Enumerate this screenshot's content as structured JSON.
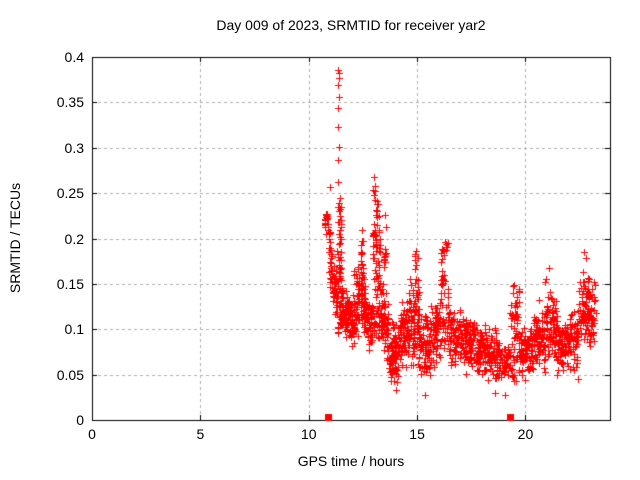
{
  "chart_data": {
    "type": "scatter",
    "title": "Day 009 of 2023, SRMTID for receiver yar2",
    "xlabel": "GPS time / hours",
    "ylabel": "SRMTID / TECUs",
    "xlim": [
      0,
      23.9
    ],
    "ylim": [
      0,
      0.4
    ],
    "xticks": [
      0,
      5,
      10,
      15,
      20
    ],
    "xtick_labels": [
      "0",
      "5",
      "10",
      "15",
      "20"
    ],
    "yticks": [
      0,
      0.05,
      0.1,
      0.15,
      0.2,
      0.25,
      0.3,
      0.35,
      0.4
    ],
    "ytick_labels": [
      "0",
      "0.05",
      "0.1",
      "0.15",
      "0.2",
      "0.25",
      "0.3",
      "0.35",
      "0.4"
    ],
    "grid": true,
    "legend": "none",
    "marker": "plus",
    "point_color": "#ff0000",
    "grid_color": "#b0b0b0",
    "axis_color": "#000000",
    "seed": 20230109,
    "notable_points": [
      [
        10.97,
        0.257
      ],
      [
        11.37,
        0.386
      ],
      [
        11.39,
        0.382
      ],
      [
        11.38,
        0.377
      ],
      [
        11.37,
        0.369
      ],
      [
        11.38,
        0.356
      ],
      [
        11.37,
        0.344
      ],
      [
        11.36,
        0.323
      ],
      [
        11.38,
        0.301
      ],
      [
        11.37,
        0.287
      ],
      [
        11.35,
        0.262
      ],
      [
        12.44,
        0.209
      ],
      [
        13.02,
        0.268
      ],
      [
        13.08,
        0.258
      ],
      [
        13.5,
        0.226
      ],
      [
        14.97,
        0.186
      ],
      [
        15.02,
        0.178
      ],
      [
        16.27,
        0.196
      ],
      [
        16.32,
        0.187
      ],
      [
        20.9,
        0.152
      ],
      [
        21.1,
        0.168
      ],
      [
        22.72,
        0.185
      ],
      [
        22.78,
        0.178
      ],
      [
        23.15,
        0.152
      ],
      [
        15.35,
        0.027
      ],
      [
        14.02,
        0.033
      ],
      [
        18.6,
        0.03
      ],
      [
        19.05,
        0.028
      ]
    ],
    "baseline_markers": [
      [
        10.9,
        0
      ],
      [
        19.3,
        0
      ]
    ],
    "clusters_columns": [
      "x_start",
      "x_end",
      "count",
      "y_center_start",
      "y_center_end",
      "y_spread",
      "uniform"
    ],
    "clusters": [
      [
        10.75,
        11.05,
        30,
        0.225,
        0.185,
        0.035,
        0
      ],
      [
        10.95,
        11.3,
        45,
        0.165,
        0.135,
        0.04,
        0
      ],
      [
        11.3,
        11.5,
        55,
        0.17,
        0.17,
        0.075,
        1
      ],
      [
        11.45,
        12.1,
        110,
        0.125,
        0.105,
        0.035,
        0
      ],
      [
        12.1,
        12.6,
        75,
        0.13,
        0.13,
        0.05,
        0
      ],
      [
        12.35,
        12.5,
        15,
        0.18,
        0.18,
        0.03,
        1
      ],
      [
        12.6,
        12.95,
        45,
        0.11,
        0.11,
        0.04,
        0
      ],
      [
        12.95,
        13.3,
        85,
        0.175,
        0.175,
        0.085,
        1
      ],
      [
        13.3,
        13.7,
        65,
        0.12,
        0.095,
        0.05,
        0
      ],
      [
        13.45,
        13.55,
        12,
        0.19,
        0.19,
        0.035,
        1
      ],
      [
        13.7,
        14.2,
        80,
        0.075,
        0.075,
        0.042,
        0
      ],
      [
        14.2,
        14.65,
        70,
        0.1,
        0.1,
        0.05,
        0
      ],
      [
        14.65,
        15.1,
        75,
        0.11,
        0.11,
        0.06,
        0
      ],
      [
        14.9,
        15.05,
        12,
        0.16,
        0.16,
        0.025,
        1
      ],
      [
        15.1,
        15.6,
        65,
        0.08,
        0.08,
        0.05,
        0
      ],
      [
        15.6,
        16.1,
        65,
        0.1,
        0.1,
        0.05,
        0
      ],
      [
        16.1,
        16.45,
        50,
        0.135,
        0.135,
        0.06,
        1
      ],
      [
        16.45,
        17.05,
        70,
        0.09,
        0.09,
        0.04,
        0
      ],
      [
        17.05,
        17.65,
        80,
        0.085,
        0.085,
        0.038,
        0
      ],
      [
        17.65,
        18.25,
        80,
        0.078,
        0.078,
        0.036,
        0
      ],
      [
        18.25,
        18.85,
        70,
        0.07,
        0.07,
        0.036,
        0
      ],
      [
        18.85,
        19.3,
        40,
        0.065,
        0.065,
        0.03,
        0
      ],
      [
        19.3,
        19.7,
        55,
        0.095,
        0.095,
        0.055,
        1
      ],
      [
        19.7,
        20.35,
        80,
        0.075,
        0.075,
        0.04,
        0
      ],
      [
        20.35,
        20.95,
        80,
        0.09,
        0.09,
        0.05,
        0
      ],
      [
        20.95,
        21.45,
        70,
        0.105,
        0.105,
        0.055,
        0
      ],
      [
        21.45,
        21.95,
        60,
        0.08,
        0.08,
        0.04,
        0
      ],
      [
        21.95,
        22.45,
        60,
        0.09,
        0.09,
        0.048,
        0
      ],
      [
        22.45,
        22.95,
        65,
        0.125,
        0.125,
        0.055,
        0
      ],
      [
        22.95,
        23.25,
        40,
        0.115,
        0.115,
        0.045,
        0
      ]
    ]
  }
}
